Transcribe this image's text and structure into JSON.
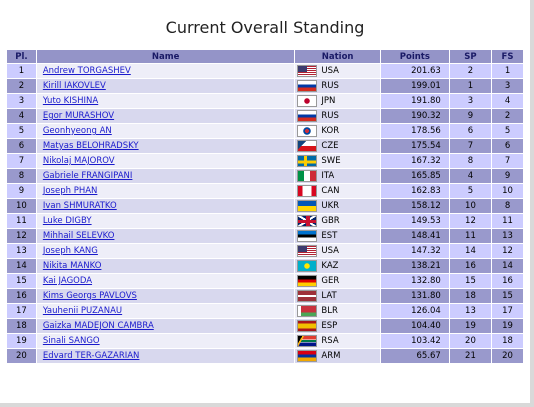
{
  "page": {
    "title": "Current Overall Standing"
  },
  "table": {
    "headers": {
      "pl": "Pl.",
      "name": "Name",
      "nation": "Nation",
      "points": "Points",
      "sp": "SP",
      "fs": "FS"
    },
    "rows": [
      {
        "pl": "1",
        "name": "Andrew TORGASHEV",
        "flag": "usa",
        "nation": "USA",
        "points": "201.63",
        "sp": "2",
        "fs": "1"
      },
      {
        "pl": "2",
        "name": "Kirill IAKOVLEV",
        "flag": "rus",
        "nation": "RUS",
        "points": "199.01",
        "sp": "1",
        "fs": "3"
      },
      {
        "pl": "3",
        "name": "Yuto KISHINA",
        "flag": "jpn",
        "nation": "JPN",
        "points": "191.80",
        "sp": "3",
        "fs": "4"
      },
      {
        "pl": "4",
        "name": "Egor MURASHOV",
        "flag": "rus",
        "nation": "RUS",
        "points": "190.32",
        "sp": "9",
        "fs": "2"
      },
      {
        "pl": "5",
        "name": "Geonhyeong AN",
        "flag": "kor",
        "nation": "KOR",
        "points": "178.56",
        "sp": "6",
        "fs": "5"
      },
      {
        "pl": "6",
        "name": "Matyas BELOHRADSKY",
        "flag": "cze",
        "nation": "CZE",
        "points": "175.54",
        "sp": "7",
        "fs": "6"
      },
      {
        "pl": "7",
        "name": "Nikolaj MAJOROV",
        "flag": "swe",
        "nation": "SWE",
        "points": "167.32",
        "sp": "8",
        "fs": "7"
      },
      {
        "pl": "8",
        "name": "Gabriele FRANGIPANI",
        "flag": "ita",
        "nation": "ITA",
        "points": "165.85",
        "sp": "4",
        "fs": "9"
      },
      {
        "pl": "9",
        "name": "Joseph PHAN",
        "flag": "can",
        "nation": "CAN",
        "points": "162.83",
        "sp": "5",
        "fs": "10"
      },
      {
        "pl": "10",
        "name": "Ivan SHMURATKO",
        "flag": "ukr",
        "nation": "UKR",
        "points": "158.12",
        "sp": "10",
        "fs": "8"
      },
      {
        "pl": "11",
        "name": "Luke DIGBY",
        "flag": "gbr",
        "nation": "GBR",
        "points": "149.53",
        "sp": "12",
        "fs": "11"
      },
      {
        "pl": "12",
        "name": "Mihhail SELEVKO",
        "flag": "est",
        "nation": "EST",
        "points": "148.41",
        "sp": "11",
        "fs": "13"
      },
      {
        "pl": "13",
        "name": "Joseph KANG",
        "flag": "usa",
        "nation": "USA",
        "points": "147.32",
        "sp": "14",
        "fs": "12"
      },
      {
        "pl": "14",
        "name": "Nikita MANKO",
        "flag": "kaz",
        "nation": "KAZ",
        "points": "138.21",
        "sp": "16",
        "fs": "14"
      },
      {
        "pl": "15",
        "name": "Kai JAGODA",
        "flag": "ger",
        "nation": "GER",
        "points": "132.80",
        "sp": "15",
        "fs": "16"
      },
      {
        "pl": "16",
        "name": "Kims Georgs PAVLOVS",
        "flag": "lat",
        "nation": "LAT",
        "points": "131.80",
        "sp": "18",
        "fs": "15"
      },
      {
        "pl": "17",
        "name": "Yauhenii PUZANAU",
        "flag": "blr",
        "nation": "BLR",
        "points": "126.04",
        "sp": "13",
        "fs": "17"
      },
      {
        "pl": "18",
        "name": "Gaizka MADEJON CAMBRA",
        "flag": "esp",
        "nation": "ESP",
        "points": "104.40",
        "sp": "19",
        "fs": "19"
      },
      {
        "pl": "19",
        "name": "Sinali SANGO",
        "flag": "rsa",
        "nation": "RSA",
        "points": "103.42",
        "sp": "20",
        "fs": "18"
      },
      {
        "pl": "20",
        "name": "Edvard TER-GAZARIAN",
        "flag": "arm",
        "nation": "ARM",
        "points": "65.67",
        "sp": "21",
        "fs": "20"
      }
    ]
  }
}
